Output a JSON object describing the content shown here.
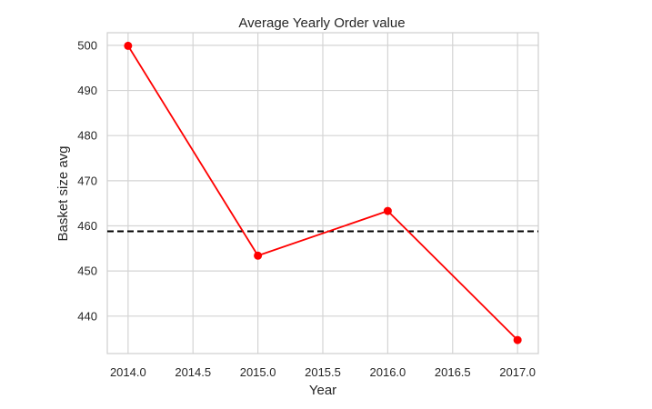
{
  "chart_data": {
    "type": "line",
    "title": "Average Yearly Order value",
    "xlabel": "Year",
    "ylabel": "Basket size avg",
    "x": [
      2014,
      2015,
      2016,
      2017
    ],
    "series": [
      {
        "values": [
          499.9,
          453.4,
          463.3,
          434.7
        ],
        "color": "#ff0000",
        "marker": "circle"
      }
    ],
    "reference_line": {
      "y": 458.8,
      "style": "dashed",
      "color": "#000000"
    },
    "xlim": [
      2013.84,
      2017.16
    ],
    "ylim": [
      431.7,
      502.8
    ],
    "xticks": [
      "2014.0",
      "2014.5",
      "2015.0",
      "2015.5",
      "2016.0",
      "2016.5",
      "2017.0"
    ],
    "yticks": [
      "440",
      "450",
      "460",
      "470",
      "480",
      "490",
      "500"
    ],
    "grid": true,
    "legend": false
  }
}
